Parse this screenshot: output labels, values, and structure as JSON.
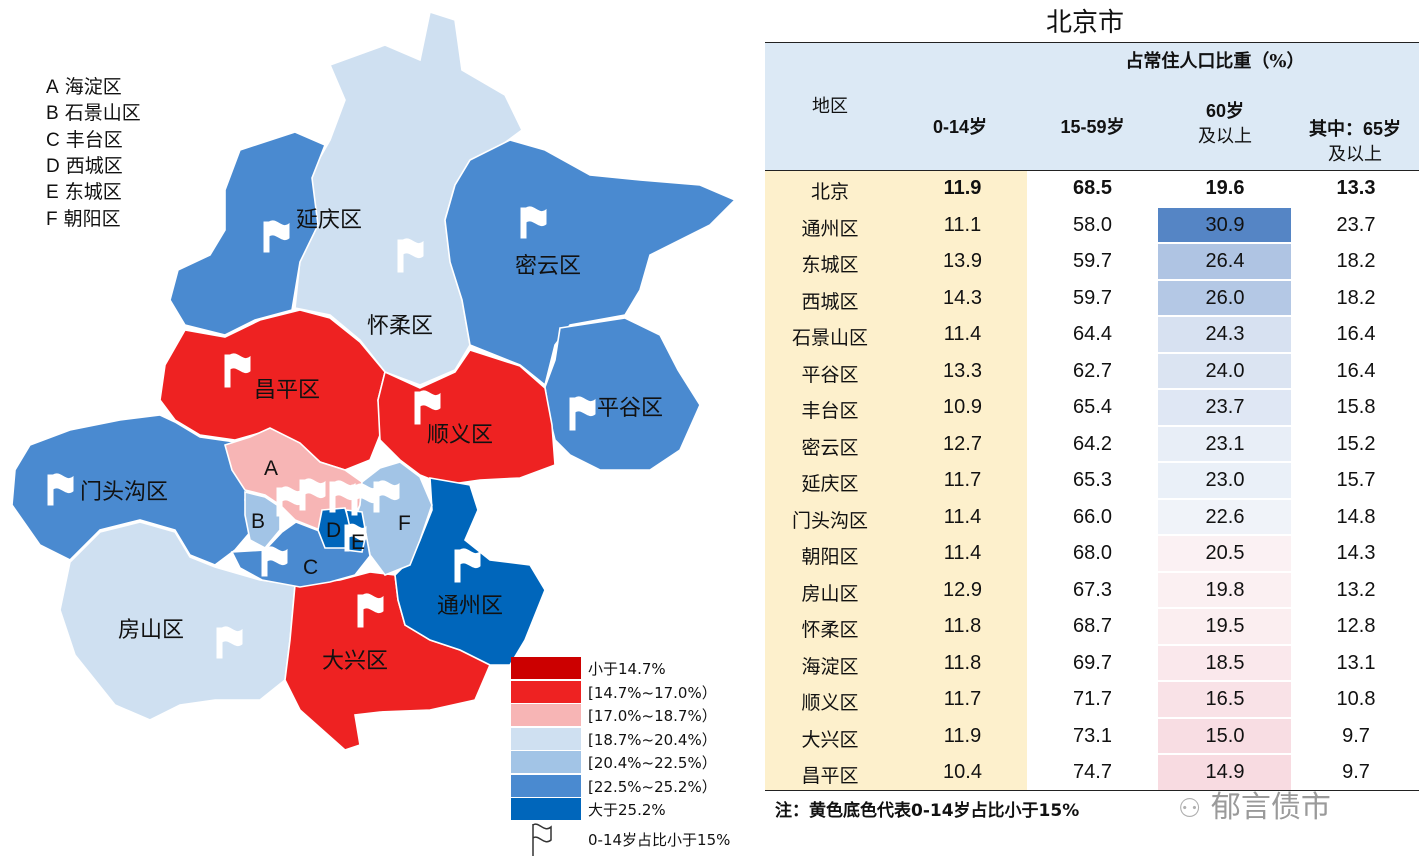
{
  "legend_abbrev": [
    {
      "key": "A",
      "name": "海淀区"
    },
    {
      "key": "B",
      "name": "石景山区"
    },
    {
      "key": "C",
      "name": "丰台区"
    },
    {
      "key": "D",
      "name": "西城区"
    },
    {
      "key": "E",
      "name": "东城区"
    },
    {
      "key": "F",
      "name": "朝阳区"
    }
  ],
  "map_labels": {
    "yanqing": "延庆区",
    "huairou": "怀柔区",
    "miyun": "密云区",
    "pinggu": "平谷区",
    "changping": "昌平区",
    "shunyi": "顺义区",
    "mentougou": "门头沟区",
    "fangshan": "房山区",
    "daxing": "大兴区",
    "tongzhou": "通州区",
    "A": "A",
    "B": "B",
    "C": "C",
    "D": "D",
    "E": "E",
    "F": "F"
  },
  "colors": {
    "lt14_7": "#cc0000",
    "c14_7_17": "#ee2222",
    "c17_18_7": "#f7b5b5",
    "c18_7_20_4": "#cfe0f1",
    "c20_4_22_5": "#a2c4e6",
    "c22_5_25_2": "#4a8ad0",
    "gt25_2": "#0066bb",
    "header_bg": "#dce9f5",
    "young_col_bg": "#fdf0cc"
  },
  "color_legend": [
    {
      "label": "小于14.7%",
      "color": "#cc0000"
    },
    {
      "label": "[14.7%~17.0%）",
      "color": "#ee2222"
    },
    {
      "label": "[17.0%~18.7%）",
      "color": "#f7b5b5"
    },
    {
      "label": "[18.7%~20.4%）",
      "color": "#cfe0f1"
    },
    {
      "label": "[20.4%~22.5%）",
      "color": "#a2c4e6"
    },
    {
      "label": "[22.5%~25.2%）",
      "color": "#4a8ad0"
    },
    {
      "label": "大于25.2%",
      "color": "#0066bb"
    }
  ],
  "flag_legend": "0-14岁占比小于15%",
  "table": {
    "title": "北京市",
    "group_header": "占常住人口比重（%）",
    "col_region": "地区",
    "col_0_14": "0-14岁",
    "col_15_59": "15-59岁",
    "col_60_line1": "60岁",
    "col_60_line2": "及以上",
    "col_65_line1": "其中：65岁",
    "col_65_line2": "及以上",
    "rows": [
      {
        "name": "北京",
        "a": "11.9",
        "b": "68.5",
        "c": "19.6",
        "d": "13.3",
        "heat": "transparent"
      },
      {
        "name": "通州区",
        "a": "11.1",
        "b": "58.0",
        "c": "30.9",
        "d": "23.7",
        "heat": "#5585c5"
      },
      {
        "name": "东城区",
        "a": "13.9",
        "b": "59.7",
        "c": "26.4",
        "d": "18.2",
        "heat": "#afc4e3"
      },
      {
        "name": "西城区",
        "a": "14.3",
        "b": "59.7",
        "c": "26.0",
        "d": "18.2",
        "heat": "#b4c8e5"
      },
      {
        "name": "石景山区",
        "a": "11.4",
        "b": "64.4",
        "c": "24.3",
        "d": "16.4",
        "heat": "#d7e1f1"
      },
      {
        "name": "平谷区",
        "a": "13.3",
        "b": "62.7",
        "c": "24.0",
        "d": "16.4",
        "heat": "#dbe4f2"
      },
      {
        "name": "丰台区",
        "a": "10.9",
        "b": "65.4",
        "c": "23.7",
        "d": "15.8",
        "heat": "#dfe7f4"
      },
      {
        "name": "密云区",
        "a": "12.7",
        "b": "64.2",
        "c": "23.1",
        "d": "15.2",
        "heat": "#e8eef7"
      },
      {
        "name": "延庆区",
        "a": "11.7",
        "b": "65.3",
        "c": "23.0",
        "d": "15.7",
        "heat": "#eaf0f8"
      },
      {
        "name": "门头沟区",
        "a": "11.4",
        "b": "66.0",
        "c": "22.6",
        "d": "14.8",
        "heat": "#f0f3f9"
      },
      {
        "name": "朝阳区",
        "a": "11.4",
        "b": "68.0",
        "c": "20.5",
        "d": "14.3",
        "heat": "#fbf1f3"
      },
      {
        "name": "房山区",
        "a": "12.9",
        "b": "67.3",
        "c": "19.8",
        "d": "13.2",
        "heat": "#fbf0f2"
      },
      {
        "name": "怀柔区",
        "a": "11.8",
        "b": "68.7",
        "c": "19.5",
        "d": "12.8",
        "heat": "#fbeef0"
      },
      {
        "name": "海淀区",
        "a": "11.8",
        "b": "69.7",
        "c": "18.5",
        "d": "13.1",
        "heat": "#fae8ec"
      },
      {
        "name": "顺义区",
        "a": "11.7",
        "b": "71.7",
        "c": "16.5",
        "d": "10.8",
        "heat": "#f9e2e7"
      },
      {
        "name": "大兴区",
        "a": "11.9",
        "b": "73.1",
        "c": "15.0",
        "d": "9.7",
        "heat": "#f8dde3"
      },
      {
        "name": "昌平区",
        "a": "10.4",
        "b": "74.7",
        "c": "14.9",
        "d": "9.7",
        "heat": "#f8dbe1"
      }
    ],
    "note": "注：黄色底色代表0-14岁占比小于15%"
  },
  "watermark": "郁言债市"
}
